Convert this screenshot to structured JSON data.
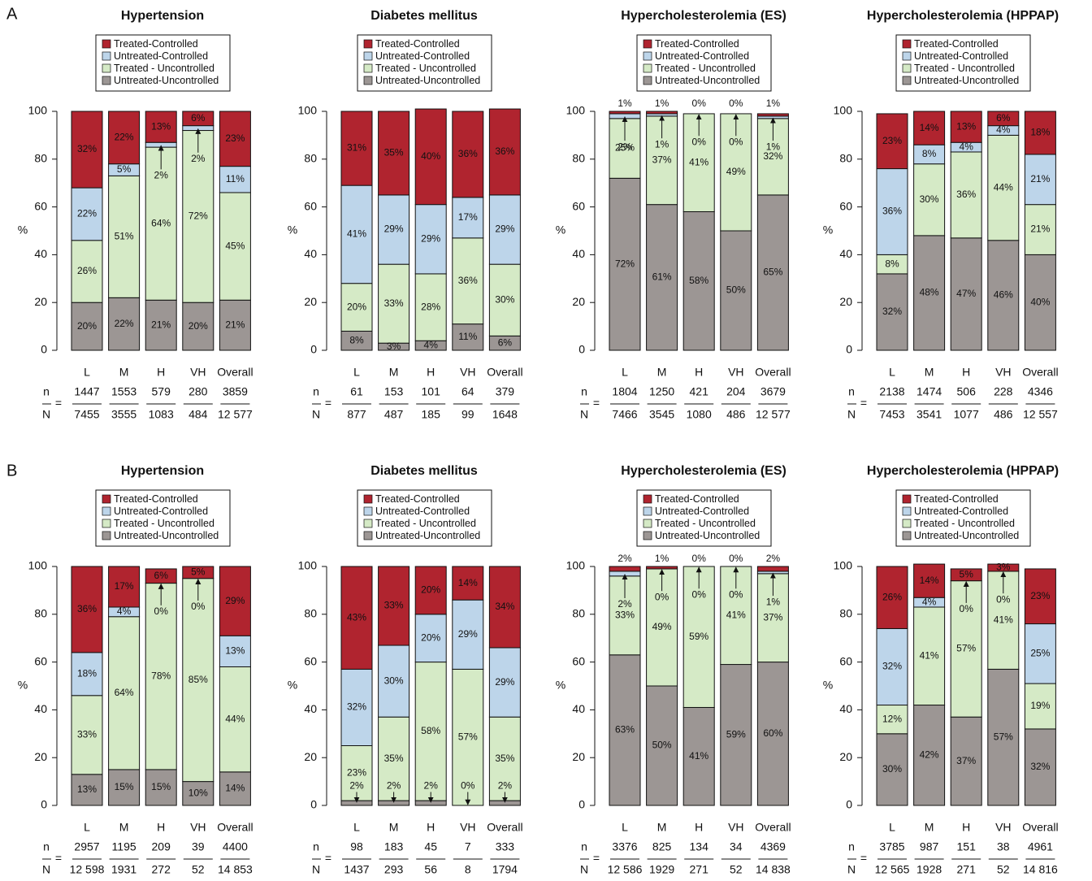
{
  "panel_labels": [
    "A",
    "B"
  ],
  "chart_data": [
    {
      "type": "bar",
      "stacked": true,
      "title": "Hypertension",
      "ylabel": "%",
      "ylim": [
        0,
        100
      ],
      "yticks": [
        0,
        20,
        40,
        60,
        80,
        100
      ],
      "categories": [
        "L",
        "M",
        "H",
        "VH",
        "Overall"
      ],
      "series": [
        {
          "name": "Treated-Controlled",
          "color": "#b0242f",
          "values": [
            32,
            22,
            13,
            6,
            23
          ],
          "value_labels": [
            "32%",
            "22%",
            "13%",
            "6%",
            "23%"
          ]
        },
        {
          "name": "Untreated-Controlled",
          "color": "#bdd5ea",
          "values": [
            22,
            5,
            2,
            2,
            11
          ],
          "value_labels": [
            "22%",
            "5%",
            "2%",
            "2%",
            "11%"
          ]
        },
        {
          "name": "Treated - Uncontrolled",
          "color": "#d5eac6",
          "values": [
            26,
            51,
            64,
            72,
            45
          ],
          "value_labels": [
            "26%",
            "51%",
            "64%",
            "72%",
            "45%"
          ]
        },
        {
          "name": "Untreated-Uncontrolled",
          "color": "#9c9694",
          "values": [
            20,
            22,
            21,
            20,
            21
          ],
          "value_labels": [
            "20%",
            "22%",
            "21%",
            "20%",
            "21%"
          ]
        }
      ],
      "n_label": "n",
      "N_label": "N",
      "equals": "=",
      "n": [
        "1447",
        "1553",
        "579",
        "280",
        "3859"
      ],
      "N": [
        "7455",
        "3555",
        "1083",
        "484",
        "12 577"
      ]
    },
    {
      "type": "bar",
      "stacked": true,
      "title": "Diabetes mellitus",
      "ylabel": "%",
      "ylim": [
        0,
        100
      ],
      "yticks": [
        0,
        20,
        40,
        60,
        80,
        100
      ],
      "categories": [
        "L",
        "M",
        "H",
        "VH",
        "Overall"
      ],
      "series": [
        {
          "name": "Treated-Controlled",
          "color": "#b0242f",
          "values": [
            31,
            35,
            40,
            36,
            36
          ],
          "value_labels": [
            "31%",
            "35%",
            "40%",
            "36%",
            "36%"
          ]
        },
        {
          "name": "Untreated-Controlled",
          "color": "#bdd5ea",
          "values": [
            41,
            29,
            29,
            17,
            29
          ],
          "value_labels": [
            "41%",
            "29%",
            "29%",
            "17%",
            "29%"
          ]
        },
        {
          "name": "Treated - Uncontrolled",
          "color": "#d5eac6",
          "values": [
            20,
            33,
            28,
            36,
            30
          ],
          "value_labels": [
            "20%",
            "33%",
            "28%",
            "36%",
            "30%"
          ]
        },
        {
          "name": "Untreated-Uncontrolled",
          "color": "#9c9694",
          "values": [
            8,
            3,
            4,
            11,
            6
          ],
          "value_labels": [
            "8%",
            "3%",
            "4%",
            "11%",
            "6%"
          ]
        }
      ],
      "n_label": "n",
      "N_label": "N",
      "equals": "=",
      "n": [
        "61",
        "153",
        "101",
        "64",
        "379"
      ],
      "N": [
        "877",
        "487",
        "185",
        "99",
        "1648"
      ]
    },
    {
      "type": "bar",
      "stacked": true,
      "title": "Hypercholesterolemia (ES)",
      "ylabel": "%",
      "ylim": [
        0,
        100
      ],
      "yticks": [
        0,
        20,
        40,
        60,
        80,
        100
      ],
      "categories": [
        "L",
        "M",
        "H",
        "VH",
        "Overall"
      ],
      "series": [
        {
          "name": "Treated-Controlled",
          "color": "#b0242f",
          "values": [
            1,
            1,
            0,
            0,
            1
          ],
          "value_labels": [
            "1%",
            "1%",
            "0%",
            "0%",
            "1%"
          ]
        },
        {
          "name": "Untreated-Controlled",
          "color": "#bdd5ea",
          "values": [
            2,
            1,
            0,
            0,
            1
          ],
          "value_labels": [
            "2%",
            "1%",
            "0%",
            "0%",
            "1%"
          ]
        },
        {
          "name": "Treated - Uncontrolled",
          "color": "#d5eac6",
          "values": [
            25,
            37,
            41,
            49,
            32
          ],
          "value_labels": [
            "25%",
            "37%",
            "41%",
            "49%",
            "32%"
          ]
        },
        {
          "name": "Untreated-Uncontrolled",
          "color": "#9c9694",
          "values": [
            72,
            61,
            58,
            50,
            65
          ],
          "value_labels": [
            "72%",
            "61%",
            "58%",
            "50%",
            "65%"
          ]
        }
      ],
      "n_label": "n",
      "N_label": "N",
      "equals": "=",
      "n": [
        "1804",
        "1250",
        "421",
        "204",
        "3679"
      ],
      "N": [
        "7466",
        "3545",
        "1080",
        "486",
        "12 577"
      ]
    },
    {
      "type": "bar",
      "stacked": true,
      "title": "Hypercholesterolemia (HPPAP)",
      "ylabel": "%",
      "ylim": [
        0,
        100
      ],
      "yticks": [
        0,
        20,
        40,
        60,
        80,
        100
      ],
      "categories": [
        "L",
        "M",
        "H",
        "VH",
        "Overall"
      ],
      "series": [
        {
          "name": "Treated-Controlled",
          "color": "#b0242f",
          "values": [
            23,
            14,
            13,
            6,
            18
          ],
          "value_labels": [
            "23%",
            "14%",
            "13%",
            "6%",
            "18%"
          ]
        },
        {
          "name": "Untreated-Controlled",
          "color": "#bdd5ea",
          "values": [
            36,
            8,
            4,
            4,
            21
          ],
          "value_labels": [
            "36%",
            "8%",
            "4%",
            "4%",
            "21%"
          ]
        },
        {
          "name": "Treated - Uncontrolled",
          "color": "#d5eac6",
          "values": [
            8,
            30,
            36,
            44,
            21
          ],
          "value_labels": [
            "8%",
            "30%",
            "36%",
            "44%",
            "21%"
          ]
        },
        {
          "name": "Untreated-Uncontrolled",
          "color": "#9c9694",
          "values": [
            32,
            48,
            47,
            46,
            40
          ],
          "value_labels": [
            "32%",
            "48%",
            "47%",
            "46%",
            "40%"
          ]
        }
      ],
      "n_label": "n",
      "N_label": "N",
      "equals": "=",
      "n": [
        "2138",
        "1474",
        "506",
        "228",
        "4346"
      ],
      "N": [
        "7453",
        "3541",
        "1077",
        "486",
        "12 557"
      ]
    },
    {
      "type": "bar",
      "stacked": true,
      "title": "Hypertension",
      "ylabel": "%",
      "ylim": [
        0,
        100
      ],
      "yticks": [
        0,
        20,
        40,
        60,
        80,
        100
      ],
      "categories": [
        "L",
        "M",
        "H",
        "VH",
        "Overall"
      ],
      "series": [
        {
          "name": "Treated-Controlled",
          "color": "#b0242f",
          "values": [
            36,
            17,
            6,
            5,
            29
          ],
          "value_labels": [
            "36%",
            "17%",
            "6%",
            "5%",
            "29%"
          ]
        },
        {
          "name": "Untreated-Controlled",
          "color": "#bdd5ea",
          "values": [
            18,
            4,
            0,
            0,
            13
          ],
          "value_labels": [
            "18%",
            "4%",
            "0%",
            "0%",
            "13%"
          ]
        },
        {
          "name": "Treated - Uncontrolled",
          "color": "#d5eac6",
          "values": [
            33,
            64,
            78,
            85,
            44
          ],
          "value_labels": [
            "33%",
            "64%",
            "78%",
            "85%",
            "44%"
          ]
        },
        {
          "name": "Untreated-Uncontrolled",
          "color": "#9c9694",
          "values": [
            13,
            15,
            15,
            10,
            14
          ],
          "value_labels": [
            "13%",
            "15%",
            "15%",
            "10%",
            "14%"
          ]
        }
      ],
      "n_label": "n",
      "N_label": "N",
      "equals": "=",
      "n": [
        "2957",
        "1195",
        "209",
        "39",
        "4400"
      ],
      "N": [
        "12 598",
        "1931",
        "272",
        "52",
        "14 853"
      ]
    },
    {
      "type": "bar",
      "stacked": true,
      "title": "Diabetes mellitus",
      "ylabel": "%",
      "ylim": [
        0,
        100
      ],
      "yticks": [
        0,
        20,
        40,
        60,
        80,
        100
      ],
      "categories": [
        "L",
        "M",
        "H",
        "VH",
        "Overall"
      ],
      "series": [
        {
          "name": "Treated-Controlled",
          "color": "#b0242f",
          "values": [
            43,
            33,
            20,
            14,
            34
          ],
          "value_labels": [
            "43%",
            "33%",
            "20%",
            "14%",
            "34%"
          ]
        },
        {
          "name": "Untreated-Controlled",
          "color": "#bdd5ea",
          "values": [
            32,
            30,
            20,
            29,
            29
          ],
          "value_labels": [
            "32%",
            "30%",
            "20%",
            "29%",
            "29%"
          ]
        },
        {
          "name": "Treated - Uncontrolled",
          "color": "#d5eac6",
          "values": [
            23,
            35,
            58,
            57,
            35
          ],
          "value_labels": [
            "23%",
            "35%",
            "58%",
            "57%",
            "35%"
          ]
        },
        {
          "name": "Untreated-Uncontrolled",
          "color": "#9c9694",
          "values": [
            2,
            2,
            2,
            0,
            2
          ],
          "value_labels": [
            "2%",
            "2%",
            "2%",
            "0%",
            "2%"
          ]
        }
      ],
      "n_label": "n",
      "N_label": "N",
      "equals": "=",
      "n": [
        "98",
        "183",
        "45",
        "7",
        "333"
      ],
      "N": [
        "1437",
        "293",
        "56",
        "8",
        "1794"
      ]
    },
    {
      "type": "bar",
      "stacked": true,
      "title": "Hypercholesterolemia (ES)",
      "ylabel": "%",
      "ylim": [
        0,
        100
      ],
      "yticks": [
        0,
        20,
        40,
        60,
        80,
        100
      ],
      "categories": [
        "L",
        "M",
        "H",
        "VH",
        "Overall"
      ],
      "series": [
        {
          "name": "Treated-Controlled",
          "color": "#b0242f",
          "values": [
            2,
            1,
            0,
            0,
            2
          ],
          "value_labels": [
            "2%",
            "1%",
            "0%",
            "0%",
            "2%"
          ]
        },
        {
          "name": "Untreated-Controlled",
          "color": "#bdd5ea",
          "values": [
            2,
            0,
            0,
            0,
            1
          ],
          "value_labels": [
            "2%",
            "0%",
            "0%",
            "0%",
            "1%"
          ]
        },
        {
          "name": "Treated - Uncontrolled",
          "color": "#d5eac6",
          "values": [
            33,
            49,
            59,
            41,
            37
          ],
          "value_labels": [
            "33%",
            "49%",
            "59%",
            "41%",
            "37%"
          ]
        },
        {
          "name": "Untreated-Uncontrolled",
          "color": "#9c9694",
          "values": [
            63,
            50,
            41,
            59,
            60
          ],
          "value_labels": [
            "63%",
            "50%",
            "41%",
            "59%",
            "60%"
          ]
        }
      ],
      "n_label": "n",
      "N_label": "N",
      "equals": "=",
      "n": [
        "3376",
        "825",
        "134",
        "34",
        "4369"
      ],
      "N": [
        "12 586",
        "1929",
        "271",
        "52",
        "14 838"
      ]
    },
    {
      "type": "bar",
      "stacked": true,
      "title": "Hypercholesterolemia (HPPAP)",
      "ylabel": "%",
      "ylim": [
        0,
        100
      ],
      "yticks": [
        0,
        20,
        40,
        60,
        80,
        100
      ],
      "categories": [
        "L",
        "M",
        "H",
        "VH",
        "Overall"
      ],
      "series": [
        {
          "name": "Treated-Controlled",
          "color": "#b0242f",
          "values": [
            26,
            14,
            5,
            3,
            23
          ],
          "value_labels": [
            "26%",
            "14%",
            "5%",
            "3%",
            "23%"
          ]
        },
        {
          "name": "Untreated-Controlled",
          "color": "#bdd5ea",
          "values": [
            32,
            4,
            0,
            0,
            25
          ],
          "value_labels": [
            "32%",
            "4%",
            "0%",
            "0%",
            "25%"
          ]
        },
        {
          "name": "Treated - Uncontrolled",
          "color": "#d5eac6",
          "values": [
            12,
            41,
            57,
            41,
            19
          ],
          "value_labels": [
            "12%",
            "41%",
            "57%",
            "41%",
            "19%"
          ]
        },
        {
          "name": "Untreated-Uncontrolled",
          "color": "#9c9694",
          "values": [
            30,
            42,
            37,
            57,
            32
          ],
          "value_labels": [
            "30%",
            "42%",
            "37%",
            "57%",
            "32%"
          ]
        }
      ],
      "n_label": "n",
      "N_label": "N",
      "equals": "=",
      "n": [
        "3785",
        "987",
        "151",
        "38",
        "4961"
      ],
      "N": [
        "12 565",
        "1928",
        "271",
        "52",
        "14 816"
      ]
    }
  ]
}
